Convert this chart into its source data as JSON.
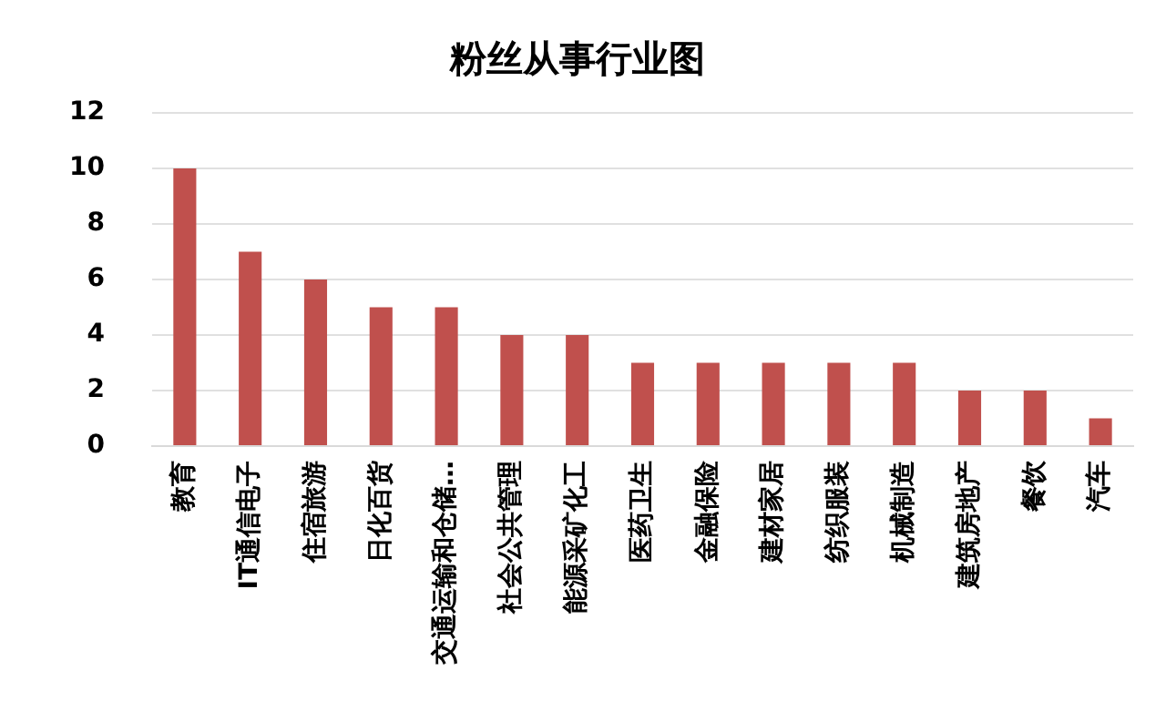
{
  "chart_data": {
    "type": "bar",
    "title": "粉丝从事行业图",
    "categories": [
      "教育",
      "IT通信电子",
      "住宿旅游",
      "日化百货",
      "交通运输和仓储…",
      "社会公共管理",
      "能源采矿化工",
      "医药卫生",
      "金融保险",
      "建材家居",
      "纺织服装",
      "机械制造",
      "建筑房地产",
      "餐饮",
      "汽车"
    ],
    "values": [
      10,
      7,
      6,
      5,
      5,
      4,
      4,
      3,
      3,
      3,
      3,
      3,
      2,
      2,
      1
    ],
    "color": "#c0504d",
    "ylim": [
      0,
      12
    ],
    "yticks": [
      0,
      2,
      4,
      6,
      8,
      10,
      12
    ],
    "grid": "y",
    "legend": false
  }
}
